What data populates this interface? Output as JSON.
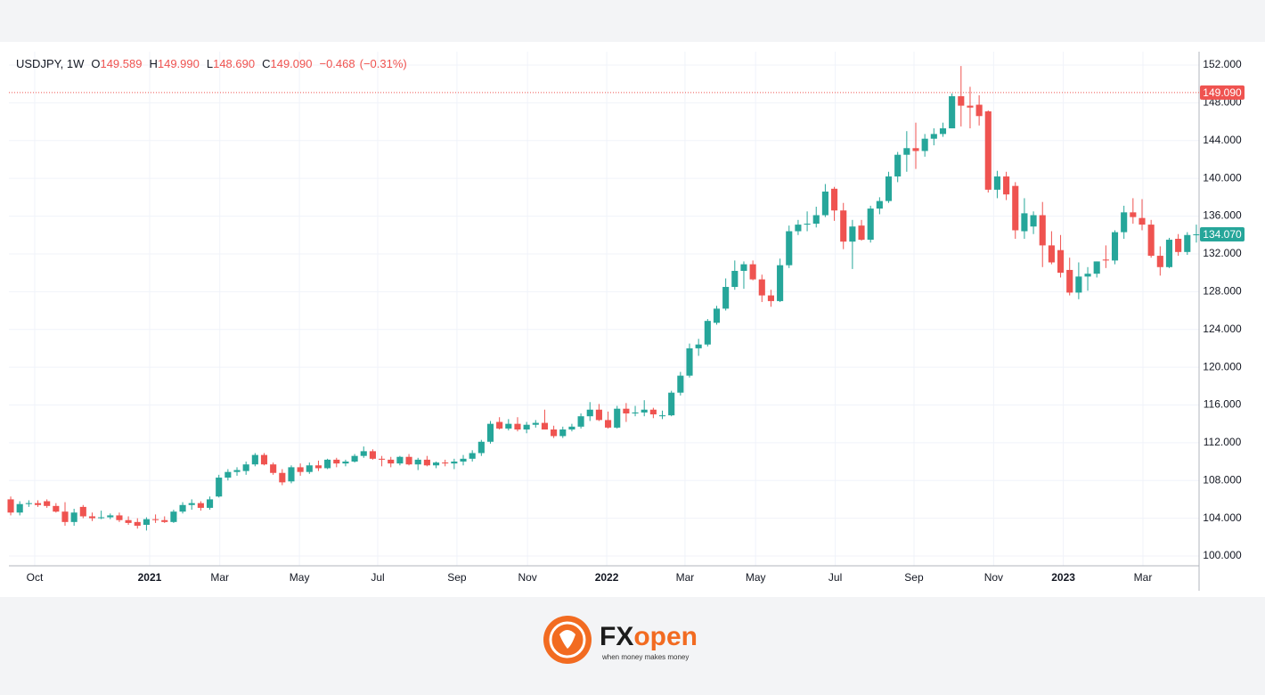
{
  "chart_data": {
    "type": "candlestick",
    "header": {
      "symbol": "USDJPY, 1W",
      "fields": [
        {
          "key": "O",
          "value": "149.589"
        },
        {
          "key": "H",
          "value": "149.990"
        },
        {
          "key": "L",
          "value": "148.690"
        },
        {
          "key": "C",
          "value": "149.090"
        }
      ],
      "change": "−0.468",
      "change_pct": "(−0.31%)"
    },
    "up_color": "#26a69a",
    "down_color": "#ef5350",
    "open": [
      106.0,
      104.6,
      105.5,
      105.6,
      105.8,
      105.3,
      104.7,
      103.6,
      105.2,
      104.2,
      104.0,
      104.1,
      104.3,
      103.8,
      103.6,
      103.3,
      103.9,
      103.8,
      103.6,
      104.7,
      105.4,
      105.6,
      105.1,
      106.3,
      108.3,
      108.9,
      109.0,
      109.7,
      110.7,
      109.7,
      108.8,
      107.9,
      109.4,
      108.9,
      109.6,
      109.3,
      110.2,
      109.8,
      110.0,
      110.6,
      111.1,
      110.3,
      110.2,
      109.8,
      110.5,
      109.7,
      110.2,
      109.6,
      109.9,
      109.8,
      110.0,
      110.3,
      110.9,
      112.1,
      114.2,
      113.5,
      114.0,
      113.4,
      113.9,
      114.1,
      113.4,
      112.7,
      113.4,
      113.7,
      114.8,
      115.5,
      114.4,
      113.6,
      115.6,
      115.1,
      115.2,
      115.5,
      114.8,
      114.9,
      117.3,
      119.1,
      122.0,
      122.4,
      124.7,
      126.2,
      128.5,
      130.2,
      130.9,
      129.3,
      127.6,
      127.0,
      130.8,
      134.4,
      135.1,
      135.2,
      136.1,
      138.9,
      136.6,
      133.3,
      135.0,
      133.5,
      136.8,
      137.6,
      140.2,
      142.5,
      143.2,
      142.9,
      144.2,
      144.7,
      145.3,
      148.7,
      147.7,
      147.8,
      147.1,
      138.8,
      140.2,
      139.2,
      134.4,
      134.9,
      136.1,
      132.9,
      132.4,
      130.3,
      127.9,
      129.6,
      129.9,
      131.4,
      131.3,
      134.3,
      136.4,
      135.8,
      135.1,
      131.8,
      130.6,
      133.6,
      132.2,
      134.0
    ],
    "high": [
      106.3,
      105.8,
      105.9,
      105.9,
      106.0,
      105.6,
      105.7,
      105.0,
      105.4,
      104.6,
      104.8,
      104.5,
      104.6,
      104.2,
      104.0,
      104.1,
      104.4,
      104.2,
      104.9,
      105.7,
      106.0,
      105.8,
      106.3,
      108.6,
      109.2,
      109.4,
      110.0,
      110.9,
      110.9,
      109.9,
      109.2,
      109.6,
      109.8,
      109.9,
      110.1,
      110.3,
      110.4,
      110.2,
      110.8,
      111.6,
      111.3,
      110.6,
      110.5,
      110.6,
      110.8,
      110.4,
      110.6,
      110.0,
      110.2,
      110.3,
      110.7,
      111.2,
      112.3,
      114.3,
      114.7,
      114.5,
      114.7,
      114.2,
      114.4,
      115.5,
      113.8,
      113.7,
      114.0,
      115.1,
      116.3,
      116.1,
      115.3,
      115.9,
      116.2,
      115.9,
      116.5,
      115.7,
      115.4,
      117.5,
      119.5,
      122.5,
      123.0,
      125.1,
      126.5,
      129.4,
      131.3,
      131.2,
      131.3,
      129.8,
      128.2,
      131.5,
      135.0,
      135.6,
      136.5,
      137.0,
      139.4,
      139.1,
      137.4,
      135.6,
      135.6,
      137.1,
      138.0,
      140.7,
      142.8,
      145.0,
      145.9,
      144.7,
      145.3,
      145.9,
      149.0,
      151.9,
      149.7,
      148.8,
      147.2,
      140.8,
      140.7,
      139.6,
      137.9,
      136.5,
      137.5,
      134.4,
      134.0,
      131.6,
      131.1,
      130.6,
      131.2,
      132.9,
      134.5,
      137.1,
      137.9,
      137.8,
      135.6,
      132.8,
      133.7,
      134.1,
      134.3,
      135.1
    ],
    "low": [
      104.3,
      104.3,
      105.2,
      105.2,
      105.1,
      104.6,
      103.2,
      103.2,
      104.0,
      103.7,
      103.9,
      103.9,
      103.6,
      103.3,
      102.9,
      102.7,
      103.5,
      103.5,
      103.5,
      104.5,
      104.9,
      104.8,
      104.9,
      106.2,
      108.0,
      108.5,
      108.6,
      109.5,
      109.6,
      108.6,
      107.5,
      107.7,
      108.5,
      108.7,
      109.0,
      109.2,
      109.4,
      109.5,
      109.9,
      110.4,
      110.2,
      109.5,
      109.4,
      109.6,
      109.6,
      109.1,
      109.5,
      109.3,
      109.5,
      109.2,
      109.6,
      110.0,
      110.6,
      111.9,
      113.4,
      113.3,
      113.2,
      113.0,
      113.6,
      113.6,
      112.5,
      112.5,
      113.2,
      113.5,
      114.3,
      114.3,
      113.5,
      113.5,
      114.2,
      114.8,
      114.8,
      114.6,
      114.5,
      114.8,
      117.0,
      118.9,
      121.2,
      122.2,
      124.5,
      126.0,
      128.2,
      128.3,
      129.2,
      126.9,
      126.4,
      126.9,
      130.5,
      134.0,
      134.4,
      134.8,
      135.9,
      135.5,
      132.5,
      130.4,
      133.4,
      133.2,
      136.2,
      137.4,
      139.6,
      140.7,
      141.0,
      142.3,
      143.5,
      144.4,
      145.3,
      145.5,
      145.3,
      145.6,
      138.5,
      137.9,
      137.7,
      133.6,
      133.6,
      134.1,
      130.6,
      130.9,
      129.5,
      127.6,
      127.2,
      128.1,
      129.5,
      130.5,
      130.9,
      133.6,
      135.2,
      134.5,
      131.6,
      129.7,
      130.5,
      131.8,
      131.9,
      133.2
    ],
    "close": [
      104.6,
      105.5,
      105.6,
      105.4,
      105.3,
      104.7,
      103.6,
      104.6,
      104.2,
      104.0,
      104.1,
      104.3,
      103.8,
      103.5,
      103.2,
      103.9,
      103.8,
      103.6,
      104.7,
      105.4,
      105.6,
      105.1,
      106.0,
      108.3,
      108.9,
      109.1,
      109.7,
      110.7,
      109.7,
      108.8,
      107.8,
      109.4,
      108.9,
      109.6,
      109.3,
      110.2,
      109.8,
      110.0,
      110.6,
      111.1,
      110.3,
      110.2,
      109.8,
      110.5,
      109.7,
      110.2,
      109.6,
      109.9,
      109.8,
      110.0,
      110.3,
      110.9,
      112.1,
      114.0,
      113.5,
      114.0,
      113.4,
      113.9,
      114.1,
      113.4,
      112.7,
      113.4,
      113.7,
      114.8,
      115.5,
      114.4,
      113.6,
      115.6,
      115.1,
      115.2,
      115.5,
      115.0,
      114.9,
      117.3,
      119.1,
      122.0,
      122.4,
      124.9,
      126.2,
      128.5,
      130.2,
      130.9,
      129.3,
      127.6,
      127.0,
      130.8,
      134.4,
      135.1,
      135.2,
      136.1,
      138.6,
      136.6,
      133.3,
      134.9,
      133.5,
      136.8,
      137.6,
      140.2,
      142.5,
      143.2,
      142.9,
      144.2,
      144.7,
      145.3,
      148.7,
      147.7,
      147.5,
      146.6,
      138.8,
      140.2,
      138.3,
      134.5,
      136.3,
      136.1,
      132.9,
      131.1,
      130.0,
      127.9,
      129.6,
      129.9,
      131.2,
      131.3,
      134.3,
      136.4,
      135.9,
      135.1,
      131.8,
      130.6,
      133.5,
      132.2,
      134.0,
      134.07
    ],
    "xlim": [
      -0.2,
      131.3
    ],
    "xticks": [
      {
        "value": 2.65,
        "label": "Oct"
      },
      {
        "value": 15.35,
        "label": "2021"
      },
      {
        "value": 23.1,
        "label": "Mar"
      },
      {
        "value": 31.9,
        "label": "May"
      },
      {
        "value": 40.55,
        "label": "Jul"
      },
      {
        "value": 49.3,
        "label": "Sep"
      },
      {
        "value": 57.1,
        "label": "Nov"
      },
      {
        "value": 65.85,
        "label": "2022"
      },
      {
        "value": 74.5,
        "label": "Mar"
      },
      {
        "value": 82.3,
        "label": "May"
      },
      {
        "value": 91.1,
        "label": "Jul"
      },
      {
        "value": 99.8,
        "label": "Sep"
      },
      {
        "value": 108.6,
        "label": "Nov"
      },
      {
        "value": 116.3,
        "label": "2023"
      },
      {
        "value": 125.1,
        "label": "Mar"
      }
    ],
    "ylim": [
      98.96,
      153.42
    ],
    "yticks": [
      {
        "value": 100,
        "label": "100.000"
      },
      {
        "value": 104,
        "label": "104.000"
      },
      {
        "value": 108,
        "label": "108.000"
      },
      {
        "value": 112,
        "label": "112.000"
      },
      {
        "value": 116,
        "label": "116.000"
      },
      {
        "value": 120,
        "label": "120.000"
      },
      {
        "value": 124,
        "label": "124.000"
      },
      {
        "value": 128,
        "label": "128.000"
      },
      {
        "value": 132,
        "label": "132.000"
      },
      {
        "value": 136,
        "label": "136.000"
      },
      {
        "value": 140,
        "label": "140.000"
      },
      {
        "value": 144,
        "label": "144.000"
      },
      {
        "value": 148,
        "label": "148.000"
      },
      {
        "value": 152,
        "label": "152.000"
      }
    ],
    "grid": true,
    "price_tags": [
      {
        "value": 149.09,
        "label": "149.090",
        "color": "#ef5350",
        "line": true
      },
      {
        "value": 134.07,
        "label": "134.070",
        "color": "#26a69a",
        "line": false
      }
    ]
  },
  "footer": {
    "brand_fx": "FX",
    "brand_open": "open",
    "tagline": "when money makes money"
  }
}
